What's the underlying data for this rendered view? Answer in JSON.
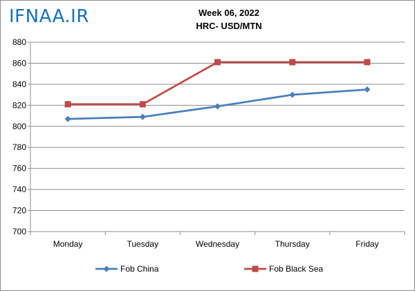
{
  "logo_text": "IFNAA.IR",
  "chart_data": {
    "type": "line",
    "title": "Week 06, 2022",
    "subtitle": "HRC- USD/MTN",
    "categories": [
      "Monday",
      "Tuesday",
      "Wednesday",
      "Thursday",
      "Friday"
    ],
    "series": [
      {
        "name": "Fob China",
        "values": [
          807,
          809,
          819,
          830,
          835
        ],
        "color": "#4a7ebb",
        "marker": "diamond"
      },
      {
        "name": "Fob Black Sea",
        "values": [
          821,
          821,
          861,
          861,
          861
        ],
        "color": "#be4b48",
        "marker": "square"
      }
    ],
    "ylim": [
      700,
      880
    ],
    "yticks": [
      700,
      720,
      740,
      760,
      780,
      800,
      820,
      840,
      860,
      880
    ],
    "grid": true,
    "legend_position": "bottom"
  }
}
